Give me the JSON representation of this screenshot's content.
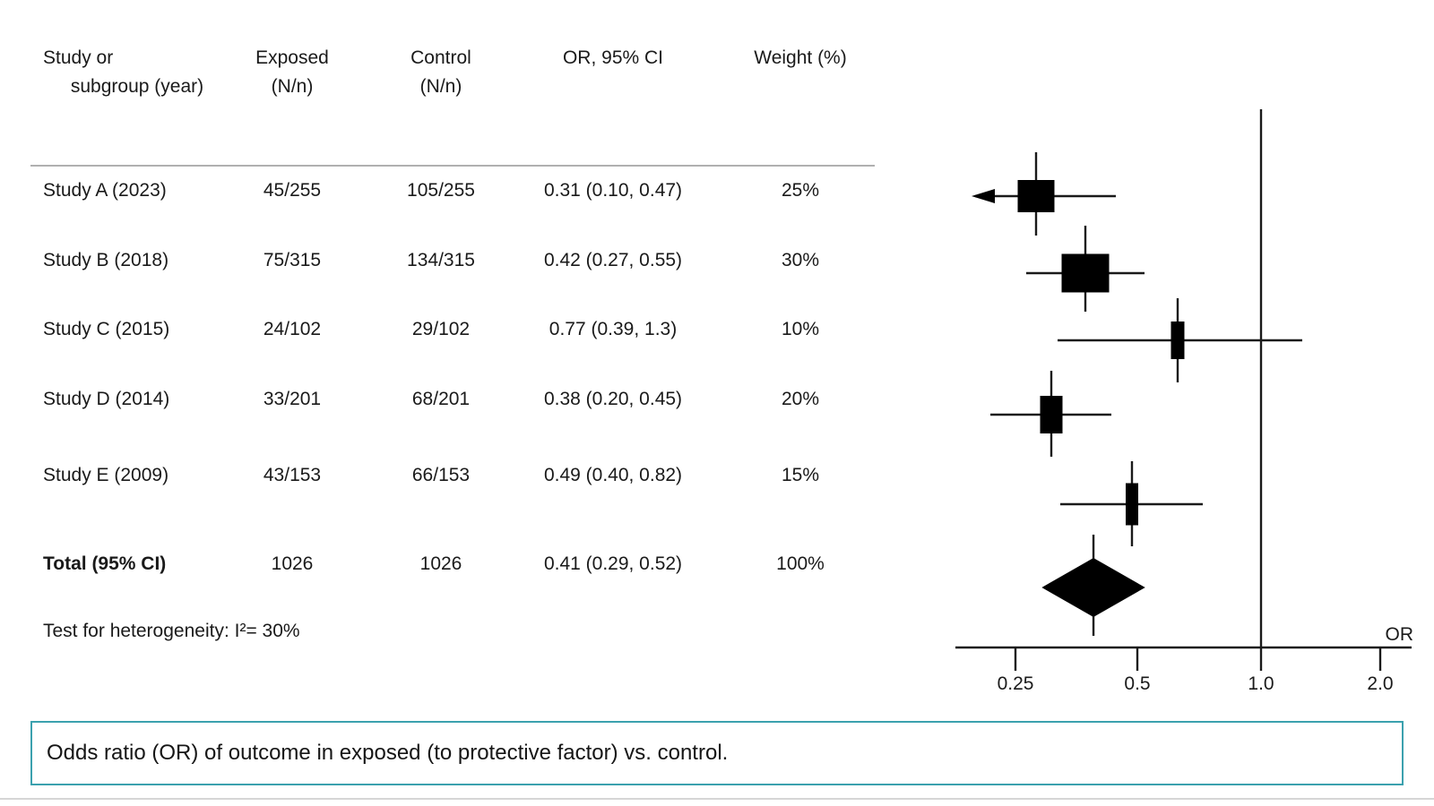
{
  "table_header": {
    "col1_line1": "Study or",
    "col1_line2": "subgroup (year)",
    "col2_line1": "Exposed",
    "col2_line2": "(N/n)",
    "col3_line1": "Control",
    "col3_line2": "(N/n)",
    "col4": "OR, 95% CI",
    "col5": "Weight (%)"
  },
  "chart_data": {
    "type": "forest",
    "x_scale": "log",
    "axis_label": "OR",
    "ref_line": 1.0,
    "xlim": [
      0.18,
      2.4
    ],
    "x_ticks": [
      {
        "value": 0.25,
        "label": "0.25"
      },
      {
        "value": 0.5,
        "label": "0.5"
      },
      {
        "value": 1.0,
        "label": "1.0"
      },
      {
        "value": 2.0,
        "label": "2.0"
      }
    ],
    "studies": [
      {
        "label": "Study A (2023)",
        "exposed": "45/255",
        "control": "105/255",
        "or": 0.31,
        "ci_low": 0.1,
        "ci_high": 0.47,
        "or_ci": "0.31 (0.10, 0.47)",
        "weight": 25,
        "weight_label": "25%",
        "ci_low_off_scale": true
      },
      {
        "label": "Study B (2018)",
        "exposed": "75/315",
        "control": "134/315",
        "or": 0.42,
        "ci_low": 0.27,
        "ci_high": 0.55,
        "or_ci": "0.42 (0.27, 0.55)",
        "weight": 30,
        "weight_label": "30%",
        "ci_low_off_scale": false
      },
      {
        "label": "Study C (2015)",
        "exposed": "24/102",
        "control": "29/102",
        "or": 0.77,
        "ci_low": 0.39,
        "ci_high": 1.3,
        "or_ci": "0.77 (0.39, 1.3)",
        "weight": 10,
        "weight_label": "10%",
        "ci_low_off_scale": false
      },
      {
        "label": "Study D (2014)",
        "exposed": "33/201",
        "control": "68/201",
        "or": 0.38,
        "ci_low": 0.2,
        "ci_high": 0.45,
        "or_ci": "0.38 (0.20, 0.45)",
        "weight": 20,
        "weight_label": "20%",
        "ci_low_off_scale": false
      },
      {
        "label": "Study E (2009)",
        "exposed": "43/153",
        "control": "66/153",
        "or": 0.49,
        "ci_low": 0.4,
        "ci_high": 0.82,
        "or_ci": "0.49 (0.40, 0.82)",
        "weight": 15,
        "weight_label": "15%",
        "ci_low_off_scale": false
      }
    ],
    "total": {
      "label": "Total (95% CI)",
      "exposed": "1026",
      "control": "1026",
      "or": 0.41,
      "ci_low": 0.29,
      "ci_high": 0.52,
      "or_ci": "0.41 (0.29, 0.52)",
      "weight": 100,
      "weight_label": "100%"
    },
    "heterogeneity_note": "Test for heterogeneity: I²= 30%",
    "marker_color": "#000000",
    "line_color": "#1a1a1a"
  },
  "caption": {
    "text": "Odds ratio (OR) of outcome in exposed (to protective factor) vs. control."
  }
}
